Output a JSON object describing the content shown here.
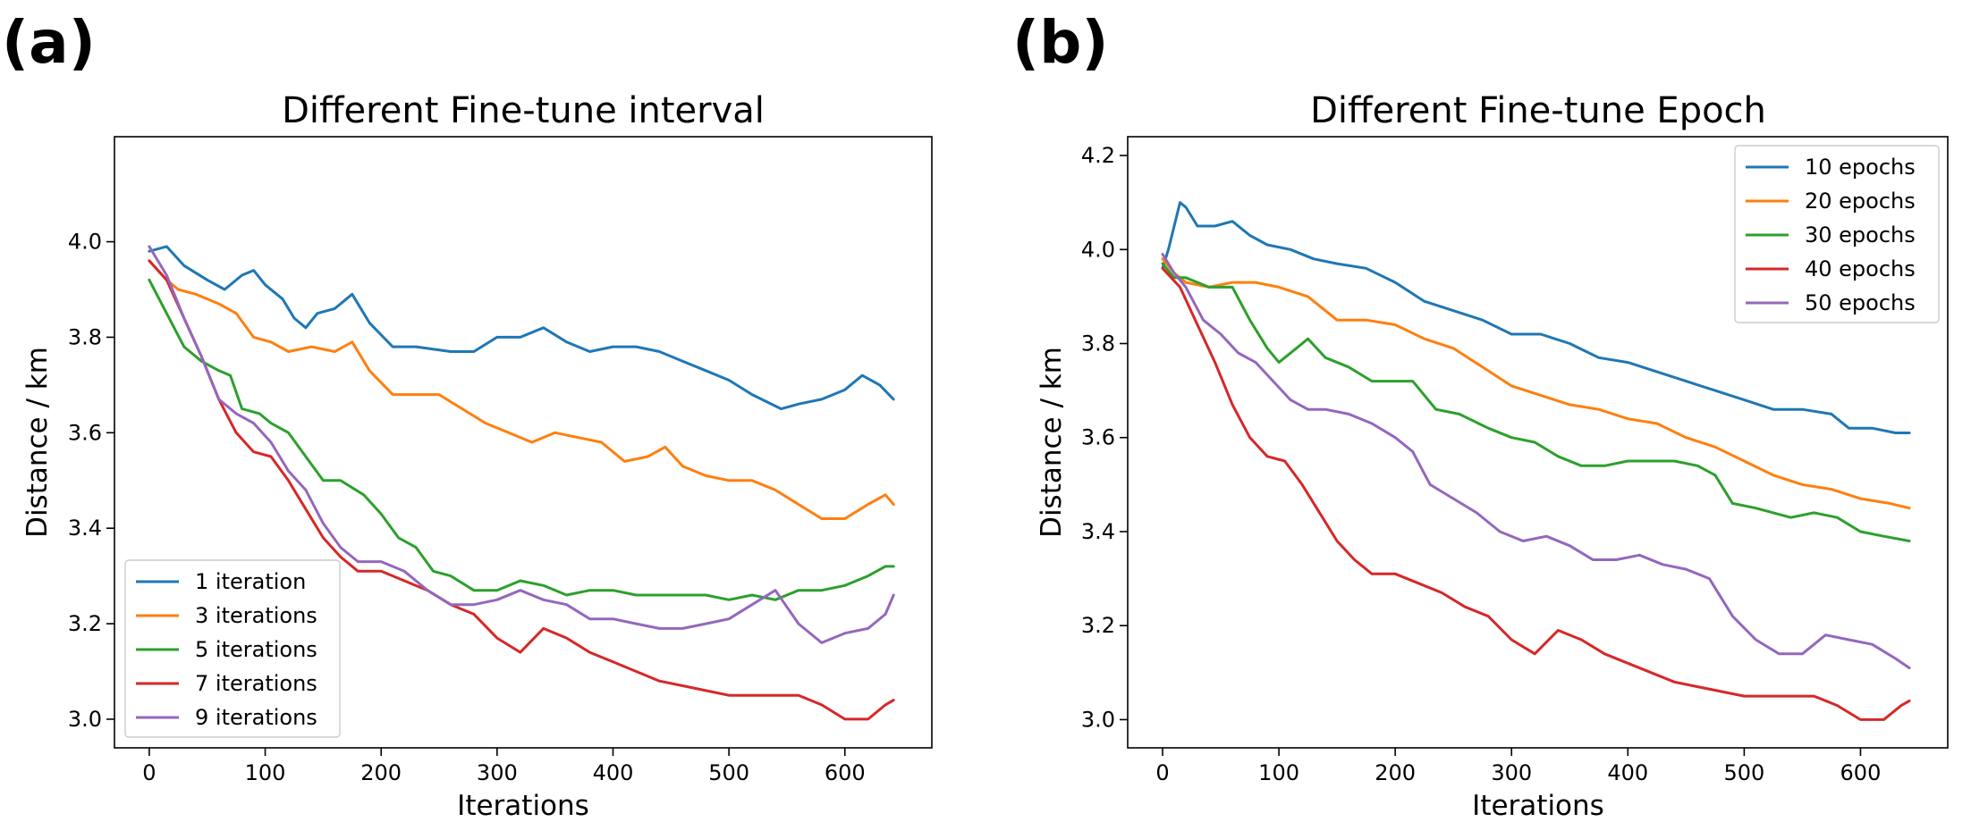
{
  "colors": {
    "blue": "#1f77b4",
    "orange": "#ff7f0e",
    "green": "#2ca02c",
    "red": "#d62728",
    "purple": "#9467bd"
  },
  "chart_data": [
    {
      "panel_label": "(a)",
      "type": "line",
      "title": "Different Fine-tune interval",
      "xlabel": "Iterations",
      "ylabel": "Distance / km",
      "xlim": [
        -30,
        675
      ],
      "ylim": [
        2.94,
        4.22
      ],
      "xticks": [
        0,
        100,
        200,
        300,
        400,
        500,
        600
      ],
      "yticks": [
        3.0,
        3.2,
        3.4,
        3.6,
        3.8,
        4.0
      ],
      "grid": false,
      "legend_position": "lower-left",
      "series": [
        {
          "name": "1 iteration",
          "color": "#1f77b4",
          "x": [
            0,
            15,
            30,
            50,
            65,
            80,
            90,
            100,
            115,
            125,
            135,
            145,
            160,
            175,
            190,
            210,
            230,
            260,
            280,
            300,
            320,
            340,
            360,
            380,
            400,
            420,
            440,
            460,
            480,
            500,
            520,
            545,
            560,
            580,
            600,
            615,
            630,
            642
          ],
          "y": [
            3.98,
            3.99,
            3.95,
            3.92,
            3.9,
            3.93,
            3.94,
            3.91,
            3.88,
            3.84,
            3.82,
            3.85,
            3.86,
            3.89,
            3.83,
            3.78,
            3.78,
            3.77,
            3.77,
            3.8,
            3.8,
            3.82,
            3.79,
            3.77,
            3.78,
            3.78,
            3.77,
            3.75,
            3.73,
            3.71,
            3.68,
            3.65,
            3.66,
            3.67,
            3.69,
            3.72,
            3.7,
            3.67
          ]
        },
        {
          "name": "3 iterations",
          "color": "#ff7f0e",
          "x": [
            0,
            15,
            25,
            40,
            60,
            75,
            90,
            105,
            120,
            140,
            160,
            175,
            190,
            210,
            230,
            250,
            270,
            290,
            310,
            330,
            350,
            370,
            390,
            410,
            430,
            445,
            460,
            480,
            500,
            520,
            540,
            560,
            580,
            600,
            620,
            635,
            642
          ],
          "y": [
            3.96,
            3.92,
            3.9,
            3.89,
            3.87,
            3.85,
            3.8,
            3.79,
            3.77,
            3.78,
            3.77,
            3.79,
            3.73,
            3.68,
            3.68,
            3.68,
            3.65,
            3.62,
            3.6,
            3.58,
            3.6,
            3.59,
            3.58,
            3.54,
            3.55,
            3.57,
            3.53,
            3.51,
            3.5,
            3.5,
            3.48,
            3.45,
            3.42,
            3.42,
            3.45,
            3.47,
            3.45
          ]
        },
        {
          "name": "5 iterations",
          "color": "#2ca02c",
          "x": [
            0,
            15,
            30,
            45,
            60,
            70,
            80,
            95,
            105,
            120,
            135,
            150,
            165,
            185,
            200,
            215,
            230,
            245,
            260,
            280,
            300,
            320,
            340,
            360,
            380,
            400,
            420,
            440,
            460,
            480,
            500,
            520,
            540,
            560,
            580,
            600,
            620,
            635,
            642
          ],
          "y": [
            3.92,
            3.85,
            3.78,
            3.75,
            3.73,
            3.72,
            3.65,
            3.64,
            3.62,
            3.6,
            3.55,
            3.5,
            3.5,
            3.47,
            3.43,
            3.38,
            3.36,
            3.31,
            3.3,
            3.27,
            3.27,
            3.29,
            3.28,
            3.26,
            3.27,
            3.27,
            3.26,
            3.26,
            3.26,
            3.26,
            3.25,
            3.26,
            3.25,
            3.27,
            3.27,
            3.28,
            3.3,
            3.32,
            3.32
          ]
        },
        {
          "name": "7 iterations",
          "color": "#d62728",
          "x": [
            0,
            15,
            30,
            45,
            60,
            75,
            90,
            105,
            120,
            135,
            150,
            165,
            180,
            200,
            220,
            240,
            260,
            280,
            300,
            320,
            340,
            360,
            380,
            400,
            420,
            440,
            460,
            480,
            500,
            520,
            540,
            560,
            580,
            600,
            620,
            635,
            642
          ],
          "y": [
            3.96,
            3.92,
            3.84,
            3.76,
            3.67,
            3.6,
            3.56,
            3.55,
            3.5,
            3.44,
            3.38,
            3.34,
            3.31,
            3.31,
            3.29,
            3.27,
            3.24,
            3.22,
            3.17,
            3.14,
            3.19,
            3.17,
            3.14,
            3.12,
            3.1,
            3.08,
            3.07,
            3.06,
            3.05,
            3.05,
            3.05,
            3.05,
            3.03,
            3.0,
            3.0,
            3.03,
            3.04
          ]
        },
        {
          "name": "9 iterations",
          "color": "#9467bd",
          "x": [
            0,
            15,
            30,
            45,
            60,
            75,
            90,
            105,
            120,
            135,
            150,
            165,
            180,
            200,
            220,
            240,
            260,
            280,
            300,
            320,
            340,
            360,
            380,
            400,
            420,
            440,
            460,
            480,
            500,
            520,
            540,
            560,
            580,
            600,
            620,
            635,
            642
          ],
          "y": [
            3.99,
            3.93,
            3.84,
            3.76,
            3.67,
            3.64,
            3.62,
            3.58,
            3.52,
            3.48,
            3.41,
            3.36,
            3.33,
            3.33,
            3.31,
            3.27,
            3.24,
            3.24,
            3.25,
            3.27,
            3.25,
            3.24,
            3.21,
            3.21,
            3.2,
            3.19,
            3.19,
            3.2,
            3.21,
            3.24,
            3.27,
            3.2,
            3.16,
            3.18,
            3.19,
            3.22,
            3.26
          ]
        }
      ]
    },
    {
      "panel_label": "(b)",
      "type": "line",
      "title": "Different Fine-tune Epoch",
      "xlabel": "Iterations",
      "ylabel": "Distance / km",
      "xlim": [
        -30,
        675
      ],
      "ylim": [
        2.94,
        4.24
      ],
      "xticks": [
        0,
        100,
        200,
        300,
        400,
        500,
        600
      ],
      "yticks": [
        3.0,
        3.2,
        3.4,
        3.6,
        3.8,
        4.0,
        4.2
      ],
      "grid": false,
      "legend_position": "upper-right",
      "series": [
        {
          "name": "10 epochs",
          "color": "#1f77b4",
          "x": [
            0,
            5,
            10,
            15,
            20,
            30,
            45,
            60,
            75,
            90,
            110,
            130,
            150,
            175,
            200,
            225,
            250,
            275,
            300,
            325,
            350,
            375,
            400,
            425,
            450,
            475,
            500,
            525,
            550,
            575,
            590,
            610,
            630,
            642
          ],
          "y": [
            3.96,
            4.0,
            4.05,
            4.1,
            4.09,
            4.05,
            4.05,
            4.06,
            4.03,
            4.01,
            4.0,
            3.98,
            3.97,
            3.96,
            3.93,
            3.89,
            3.87,
            3.85,
            3.82,
            3.82,
            3.8,
            3.77,
            3.76,
            3.74,
            3.72,
            3.7,
            3.68,
            3.66,
            3.66,
            3.65,
            3.62,
            3.62,
            3.61,
            3.61
          ]
        },
        {
          "name": "20 epochs",
          "color": "#ff7f0e",
          "x": [
            0,
            10,
            20,
            40,
            60,
            80,
            100,
            125,
            150,
            175,
            200,
            225,
            250,
            275,
            300,
            325,
            350,
            375,
            400,
            425,
            450,
            475,
            500,
            525,
            550,
            575,
            600,
            625,
            642
          ],
          "y": [
            3.98,
            3.95,
            3.93,
            3.92,
            3.93,
            3.93,
            3.92,
            3.9,
            3.85,
            3.85,
            3.84,
            3.81,
            3.79,
            3.75,
            3.71,
            3.69,
            3.67,
            3.66,
            3.64,
            3.63,
            3.6,
            3.58,
            3.55,
            3.52,
            3.5,
            3.49,
            3.47,
            3.46,
            3.45
          ]
        },
        {
          "name": "30 epochs",
          "color": "#2ca02c",
          "x": [
            0,
            10,
            20,
            40,
            60,
            75,
            90,
            100,
            115,
            125,
            140,
            160,
            180,
            200,
            215,
            235,
            255,
            280,
            300,
            320,
            340,
            360,
            380,
            400,
            420,
            440,
            460,
            475,
            490,
            510,
            540,
            560,
            580,
            600,
            620,
            642
          ],
          "y": [
            3.97,
            3.94,
            3.94,
            3.92,
            3.92,
            3.85,
            3.79,
            3.76,
            3.79,
            3.81,
            3.77,
            3.75,
            3.72,
            3.72,
            3.72,
            3.66,
            3.65,
            3.62,
            3.6,
            3.59,
            3.56,
            3.54,
            3.54,
            3.55,
            3.55,
            3.55,
            3.54,
            3.52,
            3.46,
            3.45,
            3.43,
            3.44,
            3.43,
            3.4,
            3.39,
            3.38
          ]
        },
        {
          "name": "40 epochs",
          "color": "#d62728",
          "x": [
            0,
            15,
            30,
            45,
            60,
            75,
            90,
            105,
            120,
            135,
            150,
            165,
            180,
            200,
            220,
            240,
            260,
            280,
            300,
            320,
            340,
            360,
            380,
            400,
            420,
            440,
            460,
            480,
            500,
            520,
            540,
            560,
            580,
            600,
            620,
            635,
            642
          ],
          "y": [
            3.96,
            3.92,
            3.84,
            3.76,
            3.67,
            3.6,
            3.56,
            3.55,
            3.5,
            3.44,
            3.38,
            3.34,
            3.31,
            3.31,
            3.29,
            3.27,
            3.24,
            3.22,
            3.17,
            3.14,
            3.19,
            3.17,
            3.14,
            3.12,
            3.1,
            3.08,
            3.07,
            3.06,
            3.05,
            3.05,
            3.05,
            3.05,
            3.03,
            3.0,
            3.0,
            3.03,
            3.04
          ]
        },
        {
          "name": "50 epochs",
          "color": "#9467bd",
          "x": [
            0,
            10,
            20,
            35,
            50,
            65,
            80,
            95,
            110,
            125,
            140,
            160,
            180,
            200,
            215,
            230,
            250,
            270,
            290,
            310,
            330,
            350,
            370,
            390,
            410,
            430,
            450,
            470,
            490,
            510,
            530,
            550,
            570,
            590,
            610,
            630,
            642
          ],
          "y": [
            3.99,
            3.95,
            3.92,
            3.85,
            3.82,
            3.78,
            3.76,
            3.72,
            3.68,
            3.66,
            3.66,
            3.65,
            3.63,
            3.6,
            3.57,
            3.5,
            3.47,
            3.44,
            3.4,
            3.38,
            3.39,
            3.37,
            3.34,
            3.34,
            3.35,
            3.33,
            3.32,
            3.3,
            3.22,
            3.17,
            3.14,
            3.14,
            3.18,
            3.17,
            3.16,
            3.13,
            3.11
          ]
        }
      ]
    }
  ]
}
